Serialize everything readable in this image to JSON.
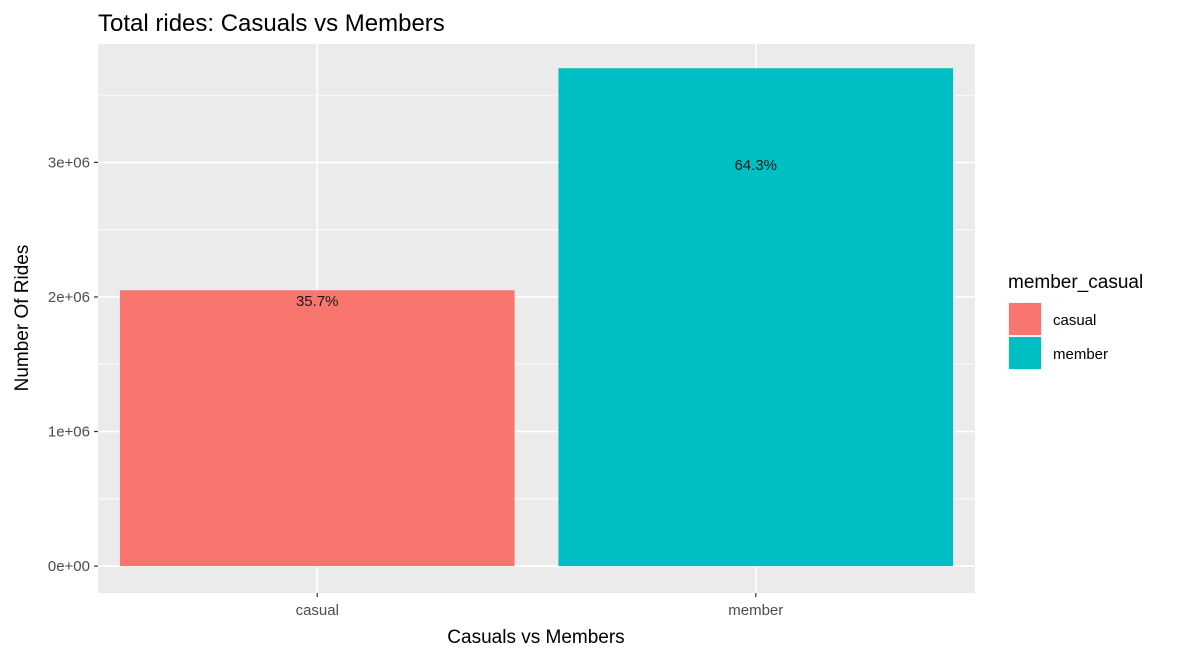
{
  "chart_data": {
    "type": "bar",
    "title": "Total rides: Casuals vs Members",
    "xlabel": "Casuals vs Members",
    "ylabel": "Number Of Rides",
    "categories": [
      "casual",
      "member"
    ],
    "values": [
      2050000,
      3700000
    ],
    "data_labels": [
      "35.7%",
      "64.3%"
    ],
    "data_label_y": [
      1970000,
      2980000
    ],
    "colors": [
      "#F8766D",
      "#00BFC4"
    ],
    "ylim": [
      -200000,
      3880000
    ],
    "yticks": [
      0,
      1000000,
      2000000,
      3000000
    ],
    "ytick_labels": [
      "0e+00",
      "1e+06",
      "2e+06",
      "3e+06"
    ],
    "grid": true,
    "panel_background": "#EBEBEB",
    "legend": {
      "title": "member_casual",
      "position": "right",
      "entries": [
        {
          "label": "casual",
          "color": "#F8766D"
        },
        {
          "label": "member",
          "color": "#00BFC4"
        }
      ]
    }
  }
}
